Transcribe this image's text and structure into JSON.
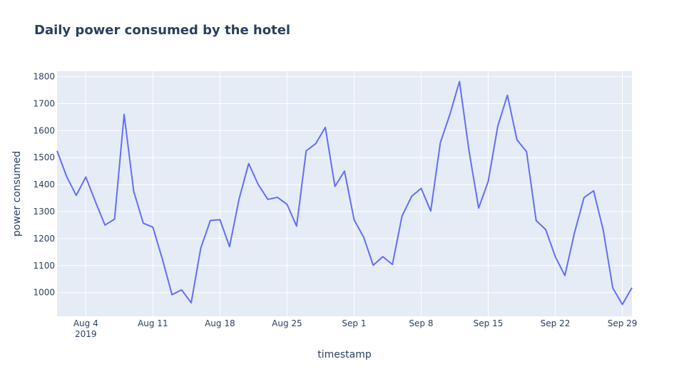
{
  "chart_data": {
    "type": "line",
    "title": "Daily power consumed by the hotel",
    "xlabel": "timestamp",
    "ylabel": "power consumed",
    "x_range": [
      "2019-08-01",
      "2019-09-30"
    ],
    "ylim": [
      912,
      1820
    ],
    "grid": true,
    "line_color": "#636efa",
    "plot_bg": "#e5ecf6",
    "x_ticks": [
      "2019-08-04",
      "2019-08-11",
      "2019-08-18",
      "2019-08-25",
      "2019-09-01",
      "2019-09-08",
      "2019-09-15",
      "2019-09-22",
      "2019-09-29"
    ],
    "x_tick_labels": [
      "Aug 4",
      "Aug 11",
      "Aug 18",
      "Aug 25",
      "Sep 1",
      "Sep 8",
      "Sep 15",
      "Sep 22",
      "Sep 29"
    ],
    "x_tick_year": "2019",
    "y_ticks": [
      1000,
      1100,
      1200,
      1300,
      1400,
      1500,
      1600,
      1700,
      1800
    ],
    "y_tick_labels": [
      "1000",
      "1100",
      "1200",
      "1300",
      "1400",
      "1500",
      "1600",
      "1700",
      "1800"
    ],
    "series": [
      {
        "x": [
          "2019-08-01",
          "2019-08-02",
          "2019-08-03",
          "2019-08-04",
          "2019-08-05",
          "2019-08-06",
          "2019-08-07",
          "2019-08-08",
          "2019-08-09",
          "2019-08-10",
          "2019-08-11",
          "2019-08-12",
          "2019-08-13",
          "2019-08-14",
          "2019-08-15",
          "2019-08-16",
          "2019-08-17",
          "2019-08-18",
          "2019-08-19",
          "2019-08-20",
          "2019-08-21",
          "2019-08-22",
          "2019-08-23",
          "2019-08-24",
          "2019-08-25",
          "2019-08-26",
          "2019-08-27",
          "2019-08-28",
          "2019-08-29",
          "2019-08-30",
          "2019-08-31",
          "2019-09-01",
          "2019-09-02",
          "2019-09-03",
          "2019-09-04",
          "2019-09-05",
          "2019-09-06",
          "2019-09-07",
          "2019-09-08",
          "2019-09-09",
          "2019-09-10",
          "2019-09-11",
          "2019-09-12",
          "2019-09-13",
          "2019-09-14",
          "2019-09-15",
          "2019-09-16",
          "2019-09-17",
          "2019-09-18",
          "2019-09-19",
          "2019-09-20",
          "2019-09-21",
          "2019-09-22",
          "2019-09-23",
          "2019-09-24",
          "2019-09-25",
          "2019-09-26",
          "2019-09-27",
          "2019-09-28",
          "2019-09-29",
          "2019-09-30"
        ],
        "y": [
          1525,
          1430,
          1360,
          1428,
          1337,
          1250,
          1272,
          1660,
          1375,
          1257,
          1242,
          1123,
          992,
          1010,
          962,
          1165,
          1267,
          1270,
          1170,
          1347,
          1478,
          1400,
          1345,
          1353,
          1327,
          1246,
          1525,
          1552,
          1612,
          1393,
          1450,
          1270,
          1205,
          1101,
          1133,
          1104,
          1283,
          1356,
          1386,
          1302,
          1555,
          1660,
          1782,
          1524,
          1313,
          1412,
          1617,
          1731,
          1566,
          1522,
          1267,
          1233,
          1133,
          1063,
          1221,
          1352,
          1377,
          1232,
          1017,
          956,
          1018
        ]
      }
    ]
  }
}
